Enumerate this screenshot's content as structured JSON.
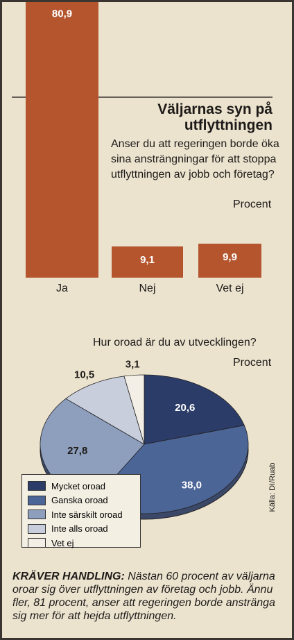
{
  "chart_data": [
    {
      "type": "bar",
      "title": "Väljarnas syn på utflyttningen",
      "subtitle": "Anser du att regeringen borde öka sina ansträngningar för att stoppa utflyttningen av jobb och företag?",
      "unit": "Procent",
      "categories": [
        "Ja",
        "Nej",
        "Vet ej"
      ],
      "values": [
        80.9,
        9.1,
        9.9
      ],
      "value_labels": [
        "80,9",
        "9,1",
        "9,9"
      ],
      "color": "#b4552d"
    },
    {
      "type": "pie",
      "title": "Hur oroad är du av utvecklingen?",
      "unit": "Procent",
      "categories": [
        "Mycket oroad",
        "Ganska oroad",
        "Inte särskilt oroad",
        "Inte alls oroad",
        "Vet ej"
      ],
      "values": [
        20.6,
        38.0,
        27.8,
        10.5,
        3.1
      ],
      "value_labels": [
        "20,6",
        "38,0",
        "27,8",
        "10,5",
        "3,1"
      ],
      "colors": [
        "#2b3c68",
        "#4c6597",
        "#8e9fbe",
        "#c8cedb",
        "#f3efe6"
      ],
      "source": "Källa: DI/Ruab"
    }
  ],
  "caption": {
    "lead": "KRÄVER HANDLING:",
    "text": "Nästan 60 procent av väljarna oroar sig över utflyttningen av företag och jobb. Ännu fler, 81 procent, anser att regeringen borde anstränga sig mer för att hejda utflyttningen."
  }
}
